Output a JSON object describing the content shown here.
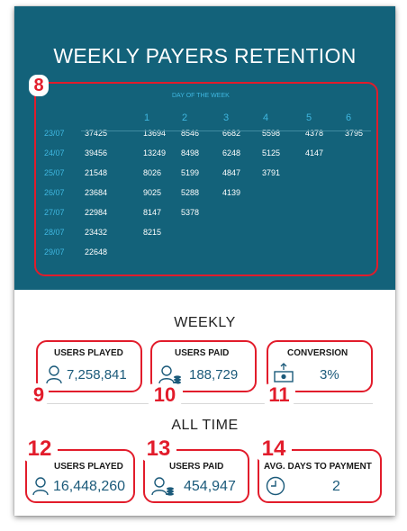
{
  "title": "WEEKLY PAYERS RETENTION",
  "cohort": {
    "axis_title": "DAY OF THE WEEK",
    "day_headers": [
      "1",
      "2",
      "3",
      "4",
      "5",
      "6"
    ],
    "rows": [
      {
        "date": "23/07",
        "total": "37425",
        "days": [
          "13694",
          "8546",
          "6682",
          "5598",
          "4378",
          "3795"
        ]
      },
      {
        "date": "24/07",
        "total": "39456",
        "days": [
          "13249",
          "8498",
          "6248",
          "5125",
          "4147"
        ]
      },
      {
        "date": "25/07",
        "total": "21548",
        "days": [
          "8026",
          "5199",
          "4847",
          "3791"
        ]
      },
      {
        "date": "26/07",
        "total": "23684",
        "days": [
          "9025",
          "5288",
          "4139"
        ]
      },
      {
        "date": "27/07",
        "total": "22984",
        "days": [
          "8147",
          "5378"
        ]
      },
      {
        "date": "28/07",
        "total": "23432",
        "days": [
          "8215"
        ]
      },
      {
        "date": "29/07",
        "total": "22648",
        "days": []
      }
    ]
  },
  "weekly": {
    "heading": "WEEKLY",
    "users_played": {
      "label": "USERS PLAYED",
      "value": "7,258,841"
    },
    "users_paid": {
      "label": "USERS PAID",
      "value": "188,729"
    },
    "conversion": {
      "label": "CONVERSION",
      "value": "3%"
    }
  },
  "all_time": {
    "heading": "ALL TIME",
    "users_played": {
      "label": "USERS PLAYED",
      "value": "16,448,260"
    },
    "users_paid": {
      "label": "USERS PAID",
      "value": "454,947"
    },
    "avg_days": {
      "label": "AVG. DAYS TO PAYMENT",
      "value": "2"
    }
  },
  "annotations": [
    "8",
    "9",
    "10",
    "11",
    "12",
    "13",
    "14"
  ],
  "colors": {
    "panel": "#13627a",
    "accent": "#3fb7e0",
    "value": "#1b5a7a",
    "highlight": "#e21c2b"
  }
}
